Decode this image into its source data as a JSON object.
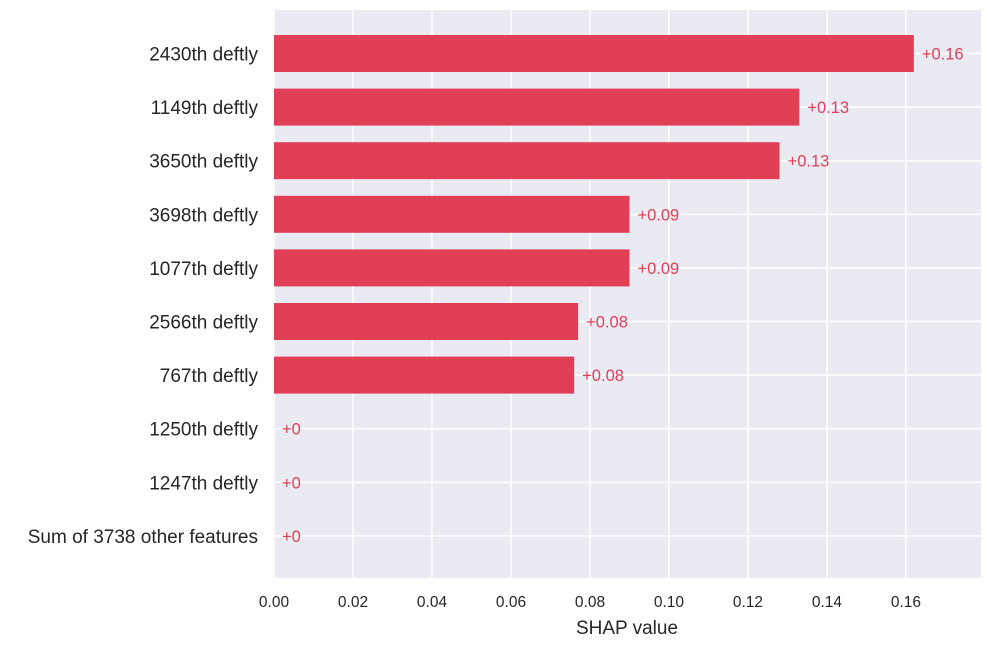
{
  "chart_data": {
    "type": "bar",
    "orientation": "horizontal",
    "title": "",
    "xlabel": "SHAP value",
    "ylabel": "",
    "categories": [
      "2430th deftly",
      "1149th deftly",
      "3650th deftly",
      "3698th deftly",
      "1077th deftly",
      "2566th deftly",
      "767th deftly",
      "1250th deftly",
      "1247th deftly",
      "Sum of 3738 other features"
    ],
    "values": [
      0.162,
      0.133,
      0.128,
      0.09,
      0.09,
      0.077,
      0.076,
      0,
      0,
      0
    ],
    "data_labels": [
      "+0.16",
      "+0.13",
      "+0.13",
      "+0.09",
      "+0.09",
      "+0.08",
      "+0.08",
      "+0",
      "+0",
      "+0"
    ],
    "xlim": [
      0,
      0.179
    ],
    "xticks": [
      0,
      0.02,
      0.04,
      0.06,
      0.08,
      0.1,
      0.12,
      0.14,
      0.16
    ],
    "xtick_labels": [
      "0.00",
      "0.02",
      "0.04",
      "0.06",
      "0.08",
      "0.10",
      "0.12",
      "0.14",
      "0.16"
    ],
    "grid": true,
    "legend": "none",
    "colors": {
      "bar": "#e13f55",
      "data_label": "#e13f55",
      "plot_background": "#eaeaf2",
      "grid": "#ffffff",
      "text": "#262626"
    }
  }
}
